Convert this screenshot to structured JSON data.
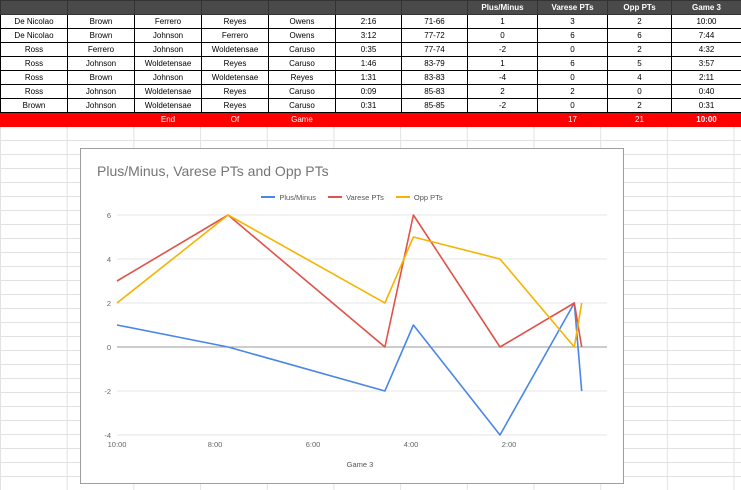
{
  "table": {
    "headers": [
      "",
      "",
      "",
      "",
      "",
      "",
      "",
      "Plus/Minus",
      "Varese PTs",
      "Opp PTs",
      "Game 3"
    ],
    "rows": [
      [
        "De Nicolao",
        "Brown",
        "Ferrero",
        "Reyes",
        "Owens",
        "2:16",
        "71-66",
        "1",
        "3",
        "2",
        "10:00"
      ],
      [
        "De Nicolao",
        "Brown",
        "Johnson",
        "Ferrero",
        "Owens",
        "3:12",
        "77-72",
        "0",
        "6",
        "6",
        "7:44"
      ],
      [
        "Ross",
        "Ferrero",
        "Johnson",
        "Woldetensae",
        "Caruso",
        "0:35",
        "77-74",
        "-2",
        "0",
        "2",
        "4:32"
      ],
      [
        "Ross",
        "Johnson",
        "Woldetensae",
        "Reyes",
        "Caruso",
        "1:46",
        "83-79",
        "1",
        "6",
        "5",
        "3:57"
      ],
      [
        "Ross",
        "Brown",
        "Johnson",
        "Woldetensae",
        "Reyes",
        "1:31",
        "83-83",
        "-4",
        "0",
        "4",
        "2:11"
      ],
      [
        "Ross",
        "Johnson",
        "Woldetensae",
        "Reyes",
        "Caruso",
        "0:09",
        "85-83",
        "2",
        "2",
        "0",
        "0:40"
      ],
      [
        "Brown",
        "Johnson",
        "Woldetensae",
        "Reyes",
        "Caruso",
        "0:31",
        "85-85",
        "-2",
        "0",
        "2",
        "0:31"
      ]
    ],
    "total": [
      "",
      "",
      "End",
      "Of",
      "Game",
      "",
      "",
      "",
      "17",
      "21",
      "10:00"
    ]
  },
  "chart_data": {
    "type": "line",
    "title": "Plus/Minus, Varese PTs and Opp PTs",
    "xlabel": "Game 3",
    "ylabel": "",
    "x": [
      "10:00",
      "7:44",
      "4:32",
      "3:57",
      "2:11",
      "0:40",
      "0:31"
    ],
    "x_seconds": [
      600,
      464,
      272,
      237,
      131,
      40,
      31
    ],
    "xlim": [
      600,
      0
    ],
    "x_ticks": [
      "10:00",
      "8:00",
      "6:00",
      "4:00",
      "2:00"
    ],
    "ylim": [
      -4,
      6
    ],
    "y_ticks": [
      "-4",
      "-2",
      "0",
      "2",
      "4",
      "6"
    ],
    "legend_position": "top",
    "grid": true,
    "series": [
      {
        "name": "Plus/Minus",
        "color": "#4a86e8",
        "values": [
          1,
          0,
          -2,
          1,
          -4,
          2,
          -2
        ]
      },
      {
        "name": "Varese PTs",
        "color": "#e0524a",
        "values": [
          3,
          6,
          0,
          6,
          0,
          2,
          0
        ]
      },
      {
        "name": "Opp PTs",
        "color": "#f4b400",
        "values": [
          2,
          6,
          2,
          5,
          4,
          0,
          2
        ]
      }
    ]
  }
}
